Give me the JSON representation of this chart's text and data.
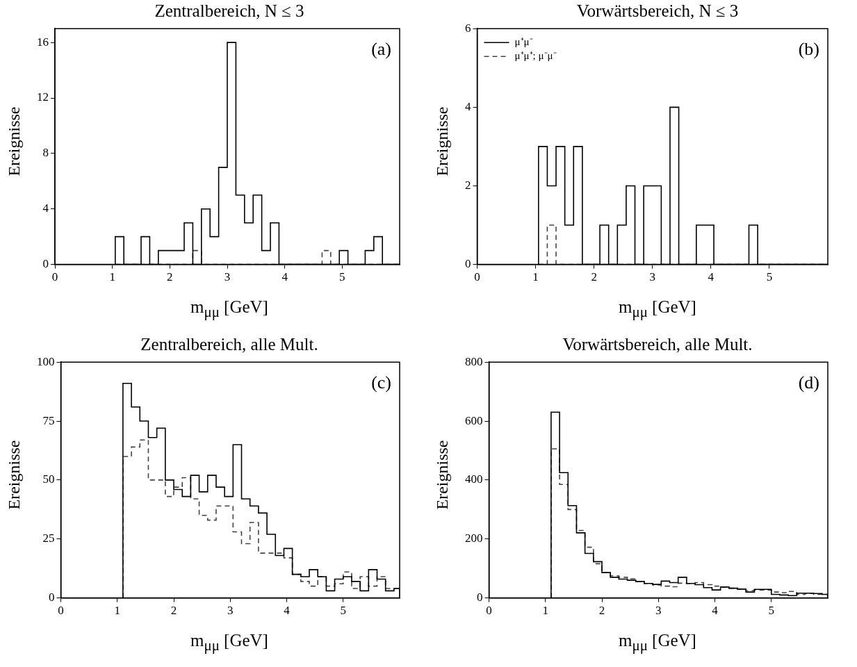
{
  "chart_data": [
    {
      "type": "histogram",
      "title": "Zentralbereich, N ≤ 3",
      "xlabel": "m$_{μμ}$ [GeV]",
      "ylabel": "Ereignisse",
      "bins": [
        1.05,
        1.2,
        1.35,
        1.5,
        1.65,
        1.8,
        1.95,
        2.1,
        2.25,
        2.4,
        2.55,
        2.7,
        2.85,
        3.0,
        3.15,
        3.3,
        3.45,
        3.6,
        3.75,
        3.9,
        4.05,
        4.2,
        4.35,
        4.5,
        4.65,
        4.8,
        4.95,
        5.1,
        5.25,
        5.4,
        5.55,
        5.7,
        5.85,
        6.0
      ],
      "series": [
        {
          "color": "#000000",
          "line_style": "solid",
          "values": [
            2,
            0,
            0,
            2,
            0,
            1,
            1,
            1,
            3,
            0,
            4,
            2,
            7,
            16,
            5,
            3,
            5,
            1,
            3,
            0,
            0,
            0,
            0,
            0,
            0,
            0,
            1,
            0,
            0,
            1,
            2,
            0,
            0
          ]
        },
        {
          "color": "#444444",
          "line_style": "dashed",
          "values": [
            0,
            0,
            0,
            0,
            0,
            0,
            0,
            0,
            0,
            1,
            0,
            0,
            0,
            0,
            0,
            0,
            0,
            0,
            0,
            0,
            0,
            0,
            0,
            0,
            1,
            0,
            0,
            0,
            0,
            0,
            0,
            0,
            0
          ]
        }
      ],
      "xlim": [
        0,
        6
      ],
      "xticks": [
        0,
        1,
        2,
        3,
        4,
        5
      ],
      "ylim": [
        0,
        17
      ],
      "yticks": [
        0,
        4,
        8,
        12,
        16
      ],
      "grid": false,
      "legend": false,
      "annotations": [
        "(a)"
      ]
    },
    {
      "type": "histogram",
      "title": "Vorwärtsbereich, N ≤ 3",
      "xlabel": "m$_{μμ}$ [GeV]",
      "ylabel": "Ereignisse",
      "bins": [
        1.05,
        1.2,
        1.35,
        1.5,
        1.65,
        1.8,
        1.95,
        2.1,
        2.25,
        2.4,
        2.55,
        2.7,
        2.85,
        3.0,
        3.15,
        3.3,
        3.45,
        3.6,
        3.75,
        3.9,
        4.05,
        4.2,
        4.35,
        4.5,
        4.65,
        4.8,
        4.95,
        5.1,
        5.25,
        5.4,
        5.55,
        5.7,
        5.85,
        6.0
      ],
      "series": [
        {
          "name": "μ⁺μ⁻",
          "color": "#000000",
          "line_style": "solid",
          "values": [
            3,
            2,
            3,
            1,
            3,
            0,
            0,
            1,
            0,
            1,
            2,
            0,
            2,
            2,
            0,
            4,
            0,
            0,
            1,
            1,
            0,
            0,
            0,
            0,
            1,
            0,
            0,
            0,
            0,
            0,
            0,
            0,
            0
          ]
        },
        {
          "name": "μ⁺μ⁺; μ⁻μ⁻",
          "color": "#444444",
          "line_style": "dashed",
          "values": [
            0,
            1,
            0,
            0,
            0,
            0,
            0,
            0,
            0,
            0,
            0,
            0,
            0,
            0,
            0,
            0,
            0,
            0,
            0,
            0,
            0,
            0,
            0,
            0,
            0,
            0,
            0,
            0,
            0,
            0,
            0,
            0,
            0
          ]
        }
      ],
      "xlim": [
        0,
        6
      ],
      "xticks": [
        0,
        1,
        2,
        3,
        4,
        5
      ],
      "ylim": [
        0,
        6
      ],
      "yticks": [
        0,
        2,
        4,
        6
      ],
      "grid": false,
      "legend": "top left",
      "annotations": [
        "(b)"
      ]
    },
    {
      "type": "histogram",
      "title": "Zentralbereich, alle Mult.",
      "xlabel": "m$_{μμ}$ [GeV]",
      "ylabel": "Ereignisse",
      "bins": [
        1.1,
        1.25,
        1.4,
        1.55,
        1.7,
        1.85,
        2.0,
        2.15,
        2.3,
        2.45,
        2.6,
        2.75,
        2.9,
        3.05,
        3.2,
        3.35,
        3.5,
        3.65,
        3.8,
        3.95,
        4.1,
        4.25,
        4.4,
        4.55,
        4.7,
        4.85,
        5.0,
        5.15,
        5.3,
        5.45,
        5.6,
        5.75,
        5.9,
        6.0
      ],
      "series": [
        {
          "color": "#000000",
          "line_style": "solid",
          "values": [
            91,
            81,
            75,
            68,
            72,
            50,
            46,
            43,
            52,
            45,
            52,
            47,
            43,
            65,
            42,
            39,
            36,
            27,
            18,
            21,
            10,
            9,
            12,
            9,
            3,
            8,
            9,
            7,
            3,
            12,
            8,
            3,
            4
          ]
        },
        {
          "color": "#444444",
          "line_style": "dashed",
          "values": [
            60,
            64,
            67,
            50,
            50,
            43,
            47,
            51,
            42,
            35,
            33,
            39,
            39,
            28,
            23,
            32,
            19,
            19,
            19,
            17,
            10,
            7,
            5,
            9,
            5,
            6,
            11,
            4,
            9,
            5,
            9,
            4,
            4
          ]
        }
      ],
      "xlim": [
        0,
        6
      ],
      "xticks": [
        0,
        1,
        2,
        3,
        4,
        5
      ],
      "ylim": [
        0,
        100
      ],
      "yticks": [
        0,
        25,
        50,
        75,
        100
      ],
      "grid": false,
      "legend": false,
      "annotations": [
        "(c)"
      ]
    },
    {
      "type": "histogram",
      "title": "Vorwärtsbereich, alle Mult.",
      "xlabel": "m$_{μμ}$ [GeV]",
      "ylabel": "Ereignisse",
      "bins": [
        1.1,
        1.25,
        1.4,
        1.55,
        1.7,
        1.85,
        2.0,
        2.15,
        2.3,
        2.45,
        2.6,
        2.75,
        2.9,
        3.05,
        3.2,
        3.35,
        3.5,
        3.65,
        3.8,
        3.95,
        4.1,
        4.25,
        4.4,
        4.55,
        4.7,
        4.85,
        5.0,
        5.15,
        5.3,
        5.45,
        5.6,
        5.75,
        5.9,
        6.0
      ],
      "series": [
        {
          "color": "#000000",
          "line_style": "solid",
          "values": [
            630,
            425,
            313,
            221,
            151,
            123,
            86,
            70,
            64,
            60,
            56,
            49,
            46,
            57,
            52,
            70,
            49,
            45,
            35,
            27,
            37,
            33,
            30,
            20,
            29,
            29,
            12,
            10,
            8,
            16,
            16,
            15,
            12
          ]
        },
        {
          "color": "#444444",
          "line_style": "dashed",
          "values": [
            506,
            385,
            300,
            229,
            172,
            116,
            86,
            75,
            70,
            65,
            56,
            49,
            44,
            40,
            38,
            50,
            49,
            52,
            45,
            40,
            37,
            33,
            30,
            25,
            27,
            27,
            20,
            18,
            22,
            12,
            15,
            12,
            12
          ]
        }
      ],
      "xlim": [
        0,
        6
      ],
      "xticks": [
        0,
        1,
        2,
        3,
        4,
        5
      ],
      "ylim": [
        0,
        800
      ],
      "yticks": [
        0,
        200,
        400,
        600,
        800
      ],
      "grid": false,
      "legend": false,
      "annotations": [
        "(d)"
      ]
    }
  ]
}
